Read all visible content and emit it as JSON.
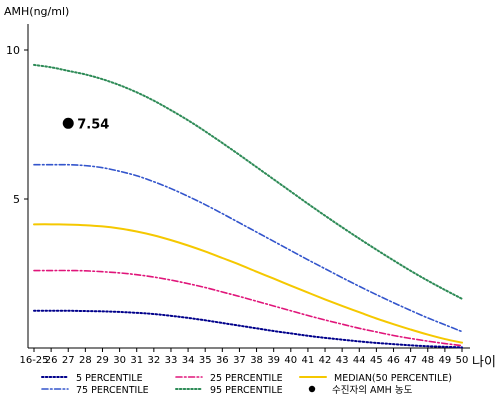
{
  "chart_data": {
    "type": "line",
    "ylabel": "AMH(ng/ml)",
    "xlabel": "나이",
    "yticks": [
      5,
      10
    ],
    "ylim": [
      0,
      11
    ],
    "grid": false,
    "legend_position": "bottom",
    "categories": [
      "16-25",
      "26",
      "27",
      "28",
      "29",
      "30",
      "31",
      "32",
      "33",
      "34",
      "35",
      "36",
      "37",
      "38",
      "39",
      "40",
      "41",
      "42",
      "43",
      "44",
      "45",
      "46",
      "47",
      "48",
      "49",
      "50"
    ],
    "series": [
      {
        "name": "5 PERCENTILE",
        "color": "#00008B",
        "dash": "dotted",
        "values": [
          1.25,
          1.25,
          1.25,
          1.24,
          1.23,
          1.21,
          1.18,
          1.14,
          1.08,
          1.01,
          0.93,
          0.84,
          0.75,
          0.66,
          0.57,
          0.49,
          0.41,
          0.34,
          0.28,
          0.22,
          0.17,
          0.13,
          0.09,
          0.06,
          0.04,
          0.02
        ]
      },
      {
        "name": "25 PERCENTILE",
        "color": "#E0157A",
        "dash": "dashdot",
        "values": [
          2.6,
          2.6,
          2.6,
          2.59,
          2.56,
          2.52,
          2.46,
          2.38,
          2.28,
          2.16,
          2.03,
          1.88,
          1.73,
          1.57,
          1.41,
          1.25,
          1.09,
          0.94,
          0.8,
          0.66,
          0.54,
          0.42,
          0.32,
          0.23,
          0.15,
          0.08
        ]
      },
      {
        "name": "MEDIAN(50 PERCENTILE)",
        "color": "#F5C800",
        "dash": "solid",
        "values": [
          4.15,
          4.15,
          4.14,
          4.12,
          4.08,
          4.01,
          3.91,
          3.78,
          3.62,
          3.44,
          3.24,
          3.02,
          2.8,
          2.56,
          2.33,
          2.09,
          1.86,
          1.63,
          1.41,
          1.2,
          0.99,
          0.8,
          0.62,
          0.45,
          0.3,
          0.18
        ]
      },
      {
        "name": "75 PERCENTILE",
        "color": "#3355CC",
        "dash": "dashdot",
        "values": [
          6.15,
          6.15,
          6.15,
          6.12,
          6.05,
          5.93,
          5.78,
          5.58,
          5.35,
          5.09,
          4.81,
          4.51,
          4.2,
          3.89,
          3.58,
          3.27,
          2.96,
          2.66,
          2.36,
          2.07,
          1.79,
          1.52,
          1.26,
          1.01,
          0.78,
          0.55
        ]
      },
      {
        "name": "95 PERCENTILE",
        "color": "#2E8B57",
        "dash": "dotted",
        "values": [
          9.5,
          9.42,
          9.3,
          9.18,
          9.02,
          8.82,
          8.58,
          8.3,
          7.98,
          7.64,
          7.27,
          6.88,
          6.48,
          6.07,
          5.66,
          5.25,
          4.84,
          4.44,
          4.05,
          3.67,
          3.3,
          2.94,
          2.59,
          2.26,
          1.95,
          1.65
        ]
      }
    ],
    "point": {
      "label": "수진자의 AMH 농도",
      "x": "27",
      "y": 7.54,
      "value_label": "7.54",
      "color": "#000000"
    }
  }
}
